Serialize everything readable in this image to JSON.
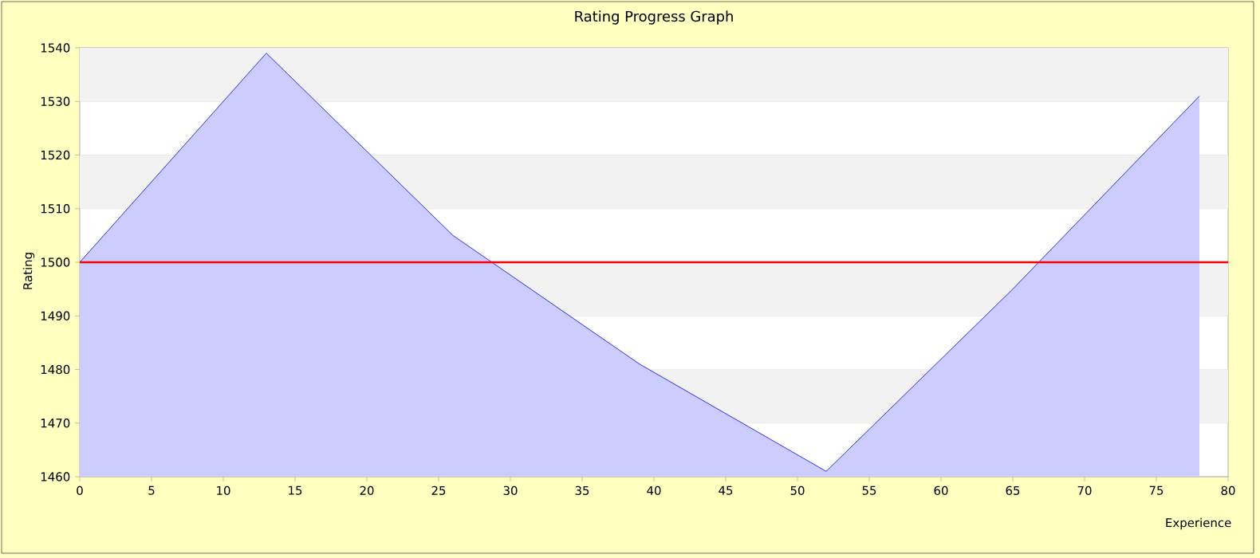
{
  "chart_data": {
    "type": "area",
    "title": "Rating Progress Graph",
    "xlabel": "Experience",
    "ylabel": "Rating",
    "x": [
      0,
      13,
      26,
      39,
      52,
      65,
      78
    ],
    "series": [
      {
        "color": "#0000ff",
        "values": [
          1500,
          1539,
          1505,
          1481,
          1461,
          1495,
          1531
        ]
      }
    ],
    "xlim": [
      0,
      80
    ],
    "xticks": [
      0,
      5,
      10,
      15,
      20,
      25,
      30,
      35,
      40,
      45,
      50,
      55,
      60,
      65,
      70,
      75,
      80
    ],
    "ylim": [
      1460,
      1540
    ],
    "yticks": [
      1460,
      1470,
      1480,
      1490,
      1500,
      1510,
      1520,
      1530,
      1540
    ],
    "ref_lines": [
      {
        "axis": "y",
        "value": 1500,
        "color": "#ff0000"
      }
    ],
    "grid": "y"
  }
}
